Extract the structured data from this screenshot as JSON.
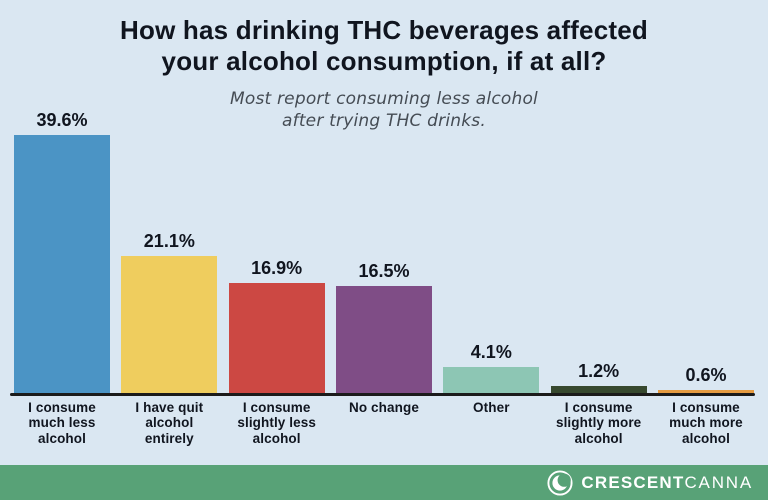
{
  "chart_data": {
    "type": "bar",
    "title": "How has drinking THC beverages affected your alcohol consumption, if at all?",
    "title_lines": [
      "How has drinking THC beverages affected",
      "your alcohol consumption, if at all?"
    ],
    "subtitle": "Most report consuming less alcohol after trying THC drinks.",
    "subtitle_lines": [
      "Most report consuming less alcohol",
      "after trying THC drinks."
    ],
    "categories": [
      "I consume much less alcohol",
      "I have quit alcohol entirely",
      "I consume slightly less alcohol",
      "No change",
      "Other",
      "I consume slightly more alcohol",
      "I consume much more alcohol"
    ],
    "category_line_breaks": [
      [
        "I consume",
        "much less",
        "alcohol"
      ],
      [
        "I have quit",
        "alcohol",
        "entirely"
      ],
      [
        "I consume",
        "slightly less",
        "alcohol"
      ],
      [
        "No change"
      ],
      [
        "Other"
      ],
      [
        "I consume",
        "slightly more",
        "alcohol"
      ],
      [
        "I consume",
        "much more",
        "alcohol"
      ]
    ],
    "values": [
      39.6,
      21.1,
      16.9,
      16.5,
      4.1,
      1.2,
      0.6
    ],
    "value_labels": [
      "39.6%",
      "21.1%",
      "16.9%",
      "16.5%",
      "4.1%",
      "1.2%",
      "0.6%"
    ],
    "bar_colors": [
      "#4B94C5",
      "#EFCD5E",
      "#CC4843",
      "#7F4D86",
      "#8DC6B4",
      "#37492F",
      "#E59B41"
    ],
    "xlabel": "",
    "ylabel": "",
    "ylim": [
      0,
      42
    ],
    "grid": false,
    "legend": "none",
    "value_labels_position": "above-bars"
  },
  "colors": {
    "background": "#DAE7F2",
    "title_text": "#10151F",
    "subtitle_text": "#454C54",
    "axis_line": "#1B1B1B",
    "footer_background": "#58A277",
    "footer_text": "#FFFFFF"
  },
  "footer": {
    "brand_bold": "CRESCENT",
    "brand_light": "CANNA",
    "logo": "crescent-moon-icon"
  }
}
